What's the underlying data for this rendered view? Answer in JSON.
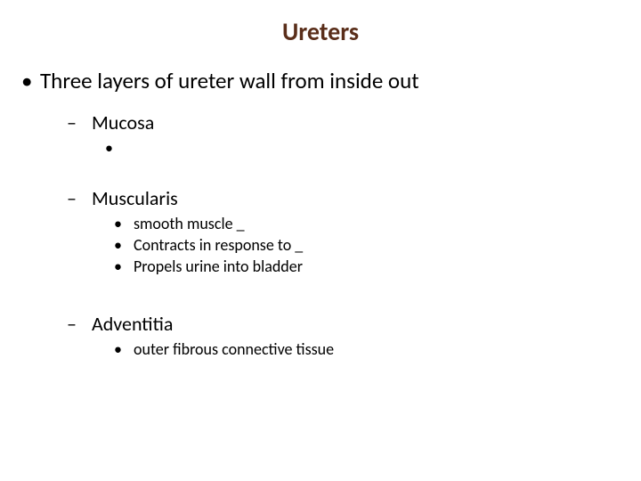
{
  "title": "Ureters",
  "colors": {
    "title": "#5a2e1a",
    "body": "#000000",
    "background": "#ffffff"
  },
  "typography": {
    "title_fontsize": 28,
    "l1_fontsize": 25,
    "l2_fontsize": 22,
    "l3_fontsize": 18,
    "font_family": "Calibri"
  },
  "bullets": {
    "l1": "•",
    "l2": "–",
    "l3": "•"
  },
  "l1_item": "Three layers of ureter wall from inside out",
  "sections": {
    "mucosa": {
      "heading": "Mucosa",
      "items": [
        ""
      ]
    },
    "muscularis": {
      "heading": "Muscularis",
      "items": [
        "smooth muscle _",
        "Contracts in response to _",
        "Propels urine into bladder"
      ]
    },
    "adventitia": {
      "heading": "Adventitia",
      "items": [
        " outer fibrous connective tissue"
      ]
    }
  }
}
